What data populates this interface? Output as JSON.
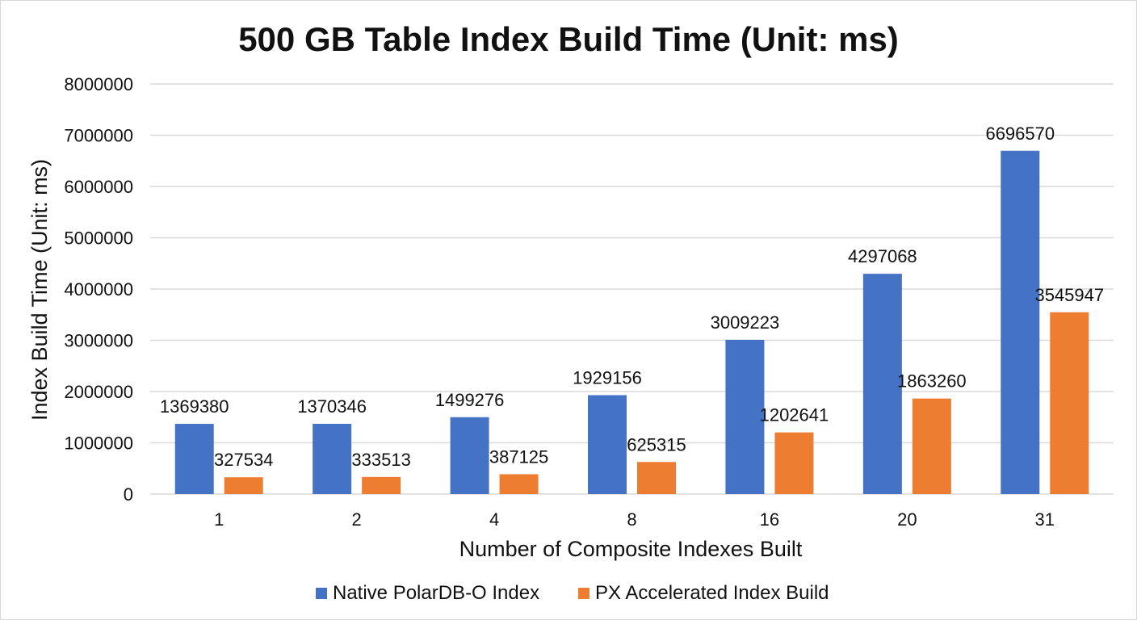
{
  "chart_data": {
    "type": "bar",
    "title": "500 GB Table Index Build Time (Unit: ms)",
    "xlabel": "Number of Composite Indexes Built",
    "ylabel": "Index Build Time (Unit: ms)",
    "categories": [
      "1",
      "2",
      "4",
      "8",
      "16",
      "20",
      "31"
    ],
    "series": [
      {
        "name": "Native PolarDB-O Index",
        "color": "#4472C4",
        "values": [
          1369380,
          1370346,
          1499276,
          1929156,
          3009223,
          4297068,
          6696570
        ]
      },
      {
        "name": "PX Accelerated Index Build",
        "color": "#ED7D31",
        "values": [
          327534,
          333513,
          387125,
          625315,
          1202641,
          1863260,
          3545947
        ]
      }
    ],
    "ylim": [
      0,
      8000000
    ],
    "yticks": [
      "0",
      "1000000",
      "2000000",
      "3000000",
      "4000000",
      "5000000",
      "6000000",
      "7000000",
      "8000000"
    ],
    "grid": true,
    "legend_position": "bottom"
  }
}
